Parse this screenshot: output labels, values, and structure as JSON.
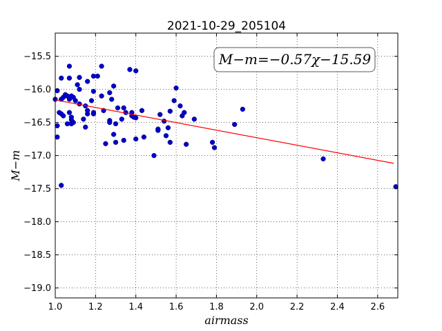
{
  "chart_data": {
    "type": "scatter",
    "title": "2021-10-29_205104",
    "xlabel": "airmass",
    "ylabel": "M−m",
    "xlim": [
      1.0,
      2.7
    ],
    "ylim": [
      -19.15,
      -15.15
    ],
    "y_inverted": true,
    "grid": true,
    "x_ticks": [
      1.0,
      1.2,
      1.4,
      1.6,
      1.8,
      2.0,
      2.2,
      2.4,
      2.6
    ],
    "x_tick_labels": [
      "1.0",
      "1.2",
      "1.4",
      "1.6",
      "1.8",
      "2.0",
      "2.2",
      "2.4",
      "2.6"
    ],
    "y_ticks": [
      -15.5,
      -16.0,
      -16.5,
      -17.0,
      -17.5,
      -18.0,
      -18.5,
      -19.0
    ],
    "y_tick_labels": [
      "−15.5",
      "−16.0",
      "−16.5",
      "−17.0",
      "−17.5",
      "−18.0",
      "−18.5",
      "−19.0"
    ],
    "fit_annotation": "M−m=−0.57χ−15.59",
    "fit": {
      "slope": -0.57,
      "intercept": -15.59,
      "x_range": [
        1.0,
        2.68
      ],
      "color": "#ff0000"
    },
    "point_color": "#0000cc",
    "points": [
      [
        1.0,
        -16.15
      ],
      [
        1.01,
        -16.02
      ],
      [
        1.01,
        -16.55
      ],
      [
        1.01,
        -16.72
      ],
      [
        1.02,
        -16.35
      ],
      [
        1.03,
        -17.45
      ],
      [
        1.03,
        -16.37
      ],
      [
        1.03,
        -16.15
      ],
      [
        1.03,
        -15.83
      ],
      [
        1.04,
        -16.12
      ],
      [
        1.04,
        -16.4
      ],
      [
        1.05,
        -16.08
      ],
      [
        1.06,
        -16.1
      ],
      [
        1.06,
        -16.52
      ],
      [
        1.07,
        -16.15
      ],
      [
        1.07,
        -16.35
      ],
      [
        1.07,
        -15.65
      ],
      [
        1.07,
        -15.83
      ],
      [
        1.08,
        -16.1
      ],
      [
        1.08,
        -16.42
      ],
      [
        1.08,
        -16.52
      ],
      [
        1.08,
        -16.46
      ],
      [
        1.09,
        -16.5
      ],
      [
        1.09,
        -16.12
      ],
      [
        1.1,
        -16.17
      ],
      [
        1.11,
        -15.93
      ],
      [
        1.12,
        -16.0
      ],
      [
        1.12,
        -16.22
      ],
      [
        1.12,
        -15.82
      ],
      [
        1.14,
        -16.45
      ],
      [
        1.15,
        -16.57
      ],
      [
        1.15,
        -16.25
      ],
      [
        1.16,
        -16.37
      ],
      [
        1.16,
        -16.32
      ],
      [
        1.16,
        -15.88
      ],
      [
        1.18,
        -16.17
      ],
      [
        1.19,
        -16.03
      ],
      [
        1.19,
        -15.8
      ],
      [
        1.19,
        -16.37
      ],
      [
        1.19,
        -16.35
      ],
      [
        1.21,
        -15.8
      ],
      [
        1.23,
        -15.65
      ],
      [
        1.23,
        -16.1
      ],
      [
        1.24,
        -16.32
      ],
      [
        1.25,
        -16.82
      ],
      [
        1.27,
        -16.05
      ],
      [
        1.27,
        -16.47
      ],
      [
        1.27,
        -16.5
      ],
      [
        1.28,
        -16.15
      ],
      [
        1.29,
        -15.95
      ],
      [
        1.29,
        -16.68
      ],
      [
        1.3,
        -16.8
      ],
      [
        1.3,
        -16.52
      ],
      [
        1.31,
        -16.28
      ],
      [
        1.33,
        -16.45
      ],
      [
        1.34,
        -16.77
      ],
      [
        1.34,
        -16.28
      ],
      [
        1.35,
        -16.35
      ],
      [
        1.37,
        -15.7
      ],
      [
        1.38,
        -16.4
      ],
      [
        1.38,
        -16.35
      ],
      [
        1.39,
        -16.42
      ],
      [
        1.4,
        -15.72
      ],
      [
        1.4,
        -16.75
      ],
      [
        1.4,
        -16.43
      ],
      [
        1.43,
        -16.32
      ],
      [
        1.44,
        -16.72
      ],
      [
        1.49,
        -17.0
      ],
      [
        1.51,
        -16.62
      ],
      [
        1.51,
        -16.6
      ],
      [
        1.52,
        -16.38
      ],
      [
        1.54,
        -16.48
      ],
      [
        1.55,
        -16.7
      ],
      [
        1.56,
        -16.58
      ],
      [
        1.57,
        -16.33
      ],
      [
        1.57,
        -16.8
      ],
      [
        1.59,
        -16.17
      ],
      [
        1.6,
        -15.98
      ],
      [
        1.62,
        -16.25
      ],
      [
        1.63,
        -16.4
      ],
      [
        1.64,
        -16.35
      ],
      [
        1.65,
        -16.83
      ],
      [
        1.69,
        -16.45
      ],
      [
        1.78,
        -16.8
      ],
      [
        1.79,
        -16.88
      ],
      [
        1.89,
        -16.53
      ],
      [
        1.93,
        -16.3
      ],
      [
        2.33,
        -17.05
      ],
      [
        2.69,
        -17.47
      ]
    ]
  }
}
